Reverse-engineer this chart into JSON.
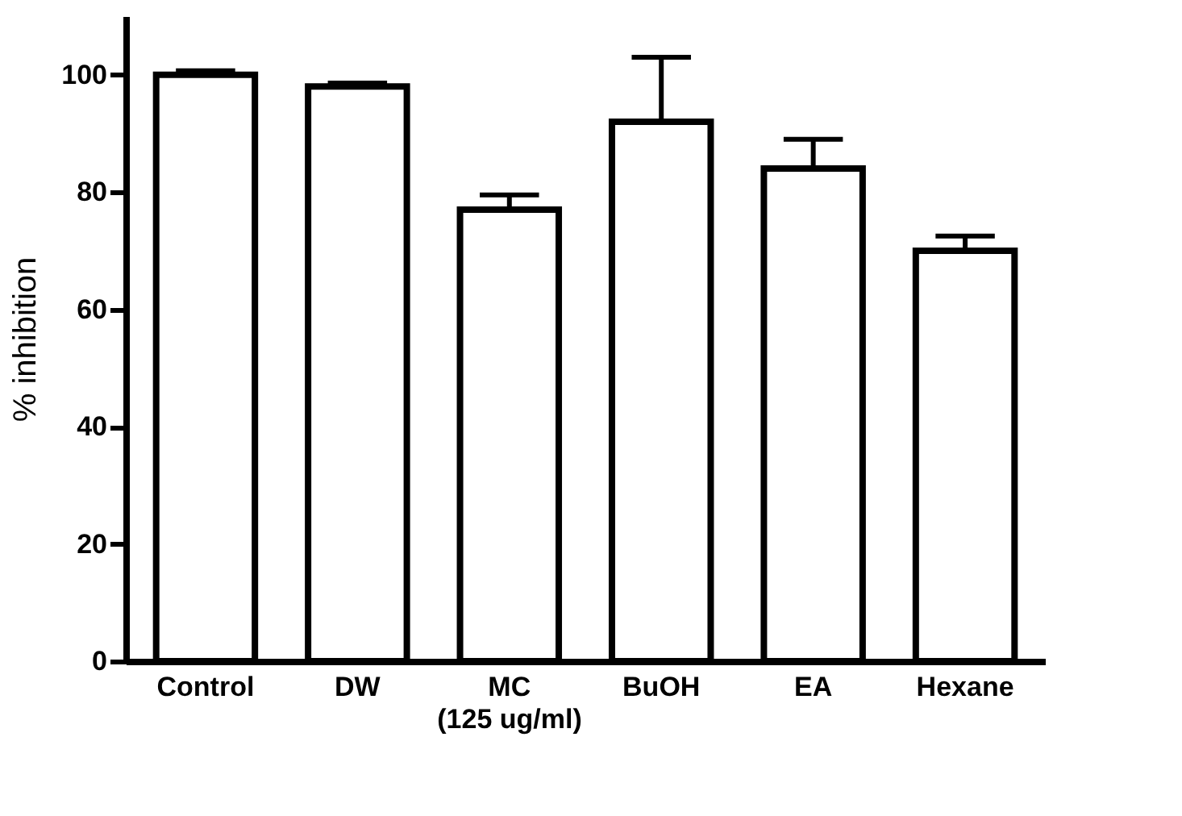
{
  "chart_data": {
    "type": "bar",
    "xlabel": "(125 ug/ml)",
    "ylabel": "% inhibition",
    "categories": [
      "Control",
      "DW",
      "MC",
      "BuOH",
      "EA",
      "Hexane"
    ],
    "values": [
      100,
      98,
      77,
      92,
      84,
      70
    ],
    "errors": [
      [
        100,
        100.7
      ],
      [
        98,
        98.6
      ],
      [
        77,
        79.5
      ],
      [
        92,
        103
      ],
      [
        84,
        89
      ],
      [
        70,
        72.5
      ]
    ],
    "color": "#ffffff",
    "ylim": [
      0,
      110
    ],
    "yticks": [
      0,
      20,
      40,
      60,
      80,
      100
    ],
    "grid": false
  }
}
